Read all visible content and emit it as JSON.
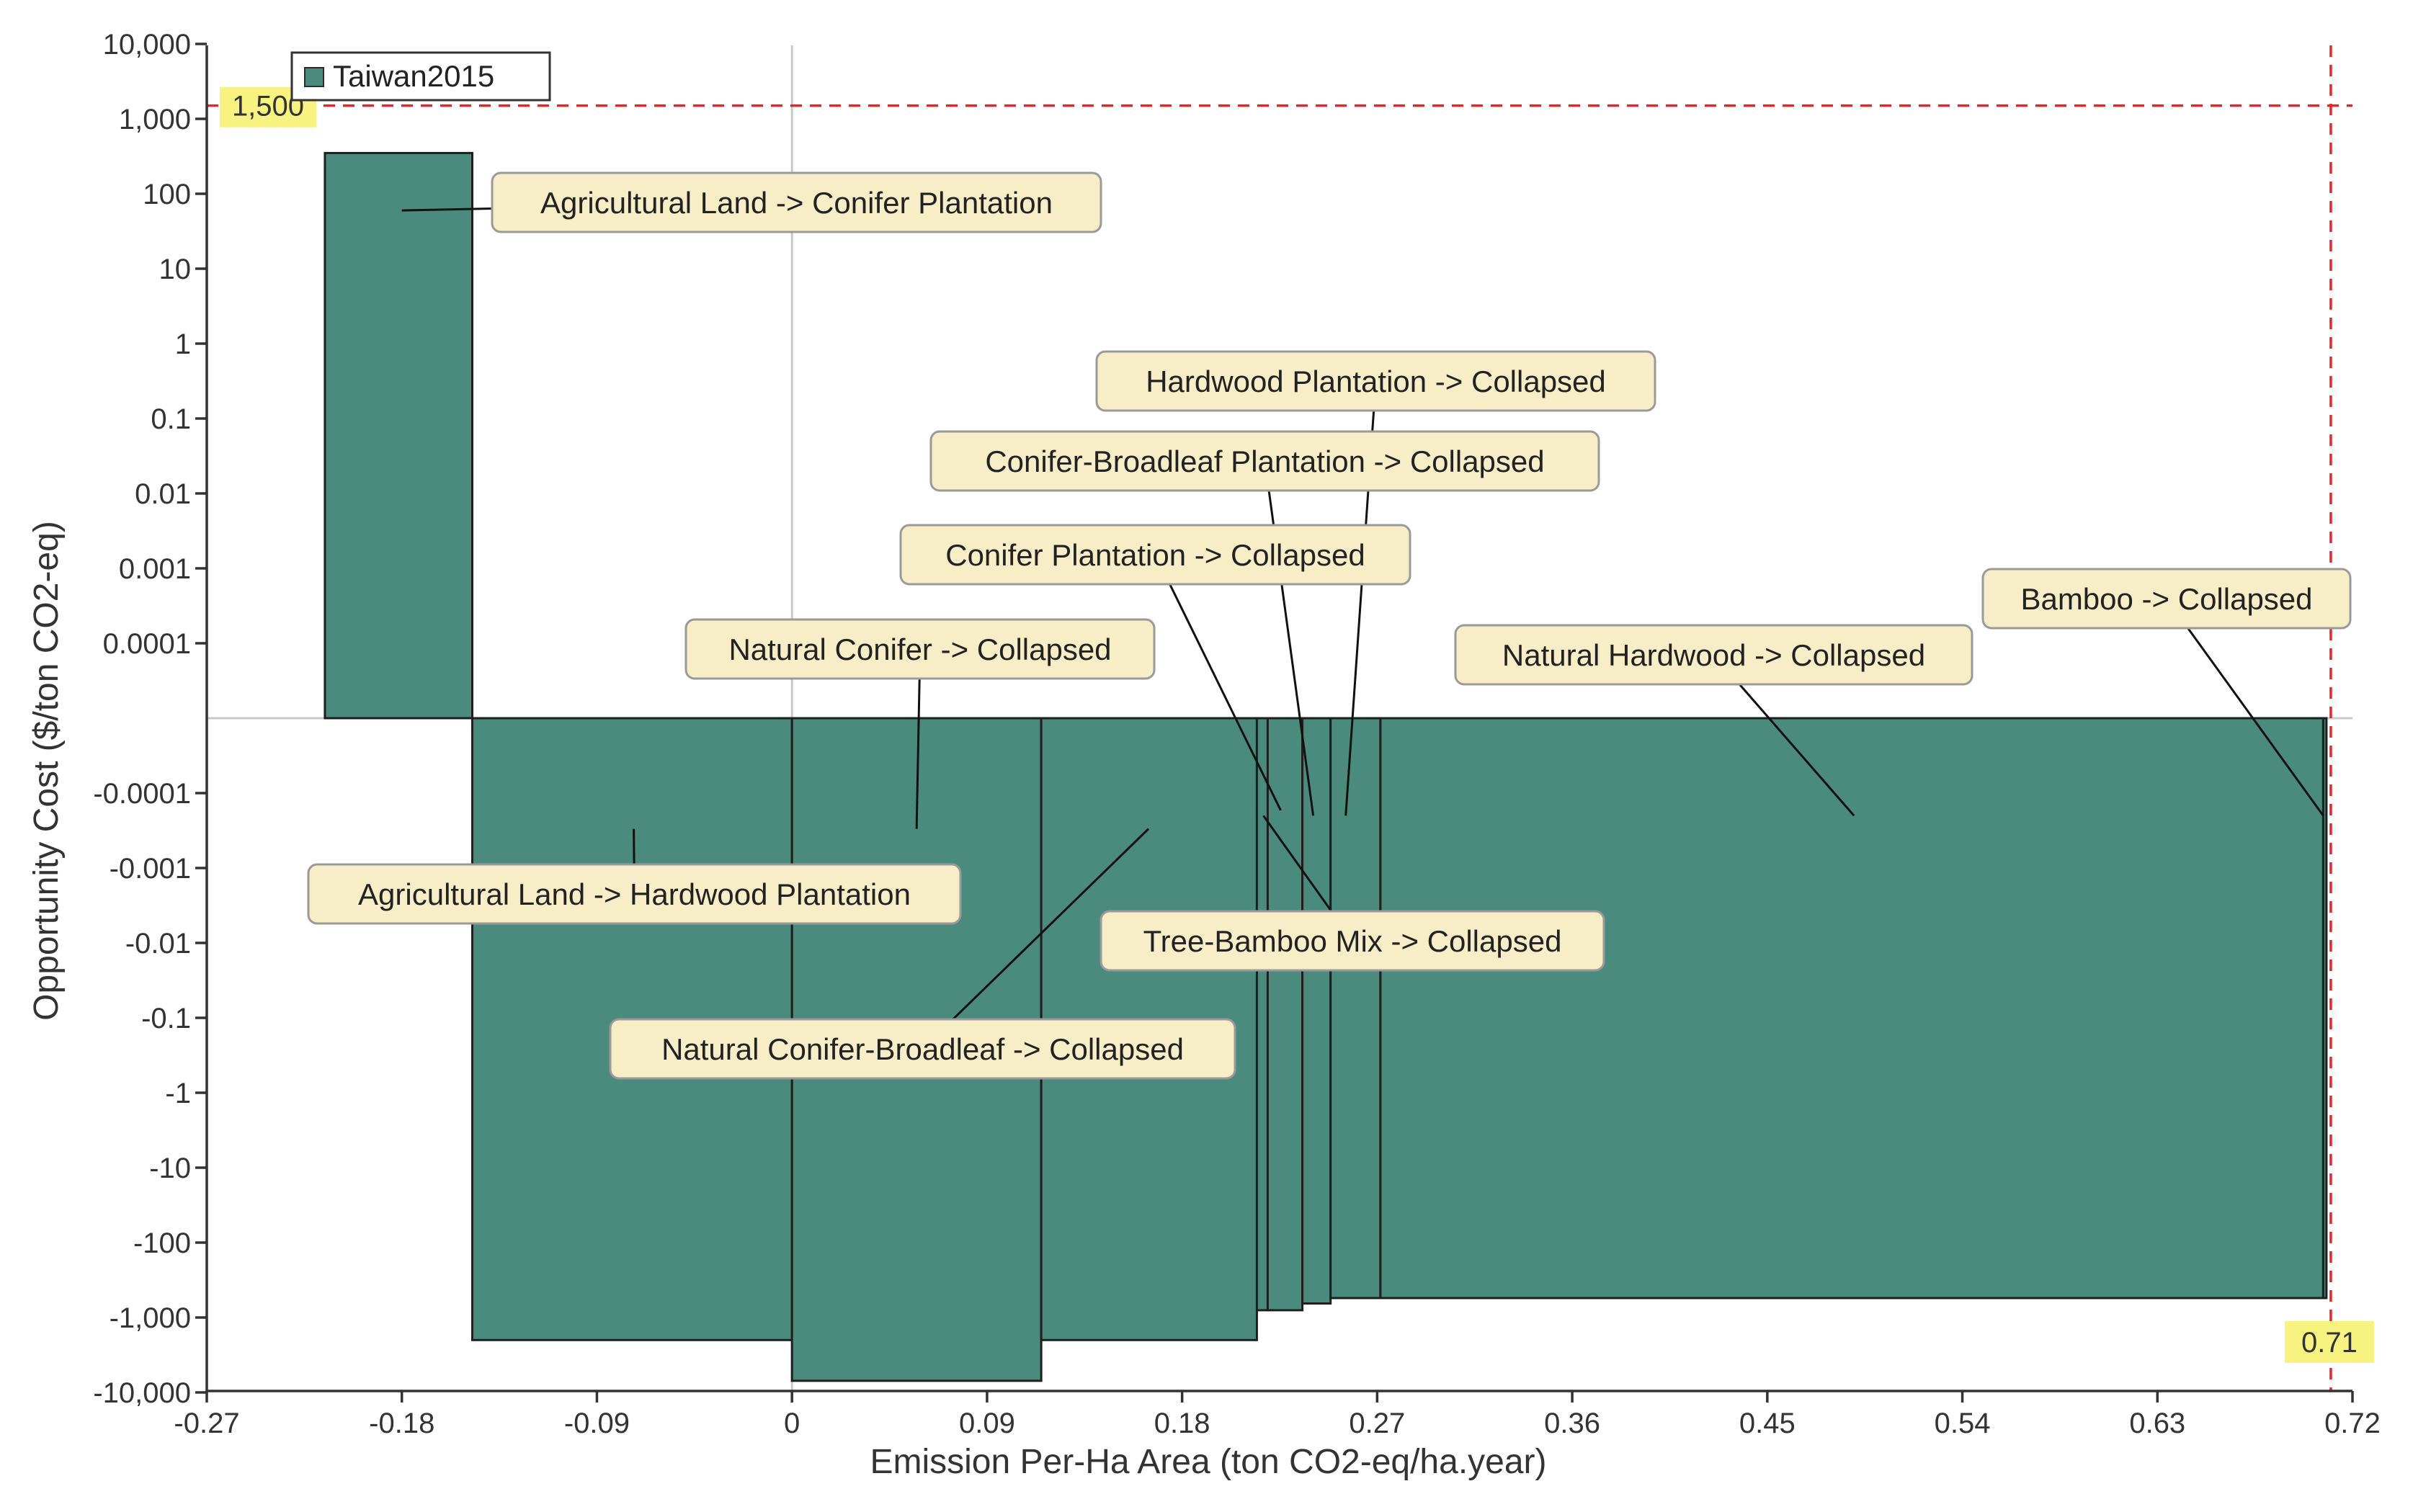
{
  "chart_data": {
    "type": "bar",
    "variant": "marginal-abatement-cost-curve",
    "xlabel": "Emission Per-Ha Area (ton CO2-eq/ha.year)",
    "ylabel": "Opportunity Cost ($/ton CO2-eq)",
    "xlim": [
      -0.27,
      0.72
    ],
    "x_ticks": [
      "-0.27",
      "-0.18",
      "-0.09",
      "0",
      "0.09",
      "0.18",
      "0.27",
      "0.36",
      "0.45",
      "0.54",
      "0.63",
      "0.72"
    ],
    "y_scale": "symmetric-log",
    "y_ticks_positive": [
      "0.0001",
      "0.001",
      "0.01",
      "0.1",
      "1",
      "10",
      "100",
      "1,000",
      "10,000"
    ],
    "y_ticks_negative": [
      "-0.0001",
      "-0.001",
      "-0.01",
      "-0.1",
      "-1",
      "-10",
      "-100",
      "-1,000",
      "-10,000"
    ],
    "legend": {
      "position": "top-left",
      "entries": [
        "Taiwan2015"
      ]
    },
    "colors": {
      "bar_fill": "#4a8b7d",
      "bar_stroke": "#1f1f1f",
      "threshold": "#e8262a",
      "threshold_label_bg": "#f8f280",
      "callout_bg": "#f7edc6",
      "callout_stroke": "#9a9a9a"
    },
    "series": [
      {
        "name": "Taiwan2015",
        "bars": [
          {
            "label": "Agricultural Land -> Conifer Plantation",
            "x0": -0.2155,
            "x1": -0.1475,
            "value": 350
          },
          {
            "label": "Agricultural Land -> Hardwood Plantation",
            "x0": -0.1475,
            "x1": 0.0,
            "value": -2000
          },
          {
            "label": "Natural Conifer -> Collapsed",
            "x0": 0.0,
            "x1": 0.115,
            "value": -7000
          },
          {
            "label": "Natural Conifer-Broadleaf -> Collapsed",
            "x0": 0.115,
            "x1": 0.2145,
            "value": -2000
          },
          {
            "label": "Conifer Plantation -> Collapsed",
            "x0": 0.2145,
            "x1": 0.2195,
            "value": -800
          },
          {
            "label": "Tree-Bamboo Mix -> Collapsed",
            "x0": 0.2195,
            "x1": 0.2355,
            "value": -800
          },
          {
            "label": "Conifer-Broadleaf Plantation -> Collapsed",
            "x0": 0.2355,
            "x1": 0.2485,
            "value": -650
          },
          {
            "label": "Hardwood Plantation -> Collapsed",
            "x0": 0.2485,
            "x1": 0.2715,
            "value": -550
          },
          {
            "label": "Natural Hardwood -> Collapsed",
            "x0": 0.2715,
            "x1": 0.7065,
            "value": -550
          },
          {
            "label": "Bamboo -> Collapsed",
            "x0": 0.7065,
            "x1": 0.708,
            "value": -550
          }
        ]
      }
    ],
    "thresholds": [
      {
        "axis": "y",
        "value": 1500,
        "label": "1,500"
      },
      {
        "axis": "x",
        "value": 0.71,
        "label": "0.71"
      }
    ],
    "annotations": [
      {
        "text": "Agricultural Land -> Conifer Plantation",
        "target_x": -0.18,
        "target_y": 60
      },
      {
        "text": "Hardwood Plantation -> Collapsed",
        "target_x": 0.2555,
        "target_y": -0.0002
      },
      {
        "text": "Conifer-Broadleaf Plantation -> Collapsed",
        "target_x": 0.2405,
        "target_y": -0.0002
      },
      {
        "text": "Conifer Plantation -> Collapsed",
        "target_x": 0.2255,
        "target_y": -0.00017
      },
      {
        "text": "Bamboo -> Collapsed",
        "target_x": 0.7065,
        "target_y": -0.0002
      },
      {
        "text": "Natural Conifer -> Collapsed",
        "target_x": 0.0575,
        "target_y": -0.0003
      },
      {
        "text": "Natural Hardwood -> Collapsed",
        "target_x": 0.49,
        "target_y": -0.0002
      },
      {
        "text": "Agricultural Land -> Hardwood Plantation",
        "target_x": -0.073,
        "target_y": -0.0003
      },
      {
        "text": "Tree-Bamboo Mix -> Collapsed",
        "target_x": 0.2175,
        "target_y": -0.0002
      },
      {
        "text": "Natural Conifer-Broadleaf -> Collapsed",
        "target_x": 0.1645,
        "target_y": -0.0003
      }
    ]
  }
}
